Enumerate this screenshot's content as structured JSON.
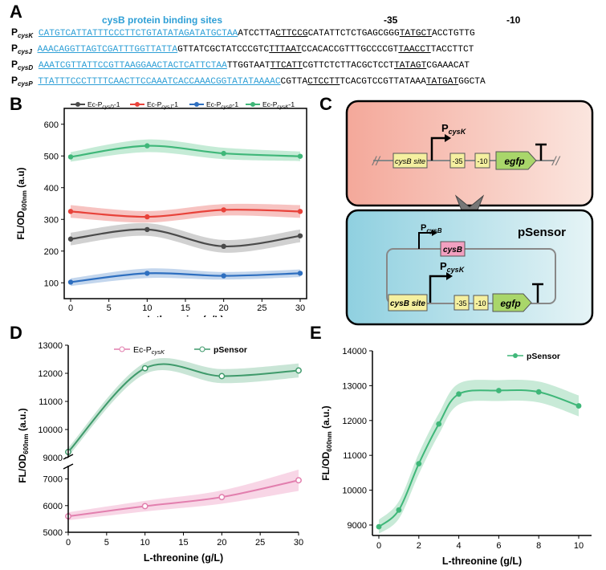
{
  "panel_a": {
    "letter": "A",
    "site_header": "cysB protein binding sites",
    "minus35": "-35",
    "minus10": "-10",
    "rows": [
      {
        "p": "P",
        "sub": "cysK",
        "site": "CATGTCATTATTTCCCTTCTGTATATAGATATGCTAA",
        "a": "ATCCTTA",
        "b": "CTTCCG",
        "c": "CATATTCTCTGAGCGGG",
        "d": "TATGCT",
        "e": "ACCTGTTG"
      },
      {
        "p": "P",
        "sub": "cysJ",
        "site": "AAACAGGTTAGTCGATTTGGTTATTA",
        "a": "GTTATCGCTATCCCGTC",
        "b": "TTTAAT",
        "c": "CCACACCGTTTGCCCCGT",
        "d": "TAACCT",
        "e": "TACCTTCT"
      },
      {
        "p": "P",
        "sub": "cysD",
        "site": "AAATCGTTATTCCGTTAAGGAACTACTCATTCTAA",
        "a": "TTGGTAAT",
        "b": "TTCATT",
        "c": "CGTTCTCTTACGCTCCT",
        "d": "TATAGT",
        "e": "CGAAACAT"
      },
      {
        "p": "P",
        "sub": "cysP",
        "site": "TTATTTCCCTTTTCAACTTCCAAATCACCAAACGGTATATAAAAC",
        "a": "CGTTA",
        "b": "CTCCTT",
        "c": "TCACGTCCGTTATAAA",
        "d": "TATGAT",
        "e": "GGCTA"
      }
    ]
  },
  "panel_b": {
    "letter": "B"
  },
  "panel_c": {
    "letter": "C",
    "top_promoter": "P",
    "top_promoter_sub": "cysK",
    "cysb_site": "cysB site",
    "m35": "-35",
    "m10": "-10",
    "gene": "egfp",
    "bottom_title": "pSensor",
    "bottom_promoter1": "P",
    "bottom_promoter1_sub": "cysB",
    "cysb_gene": "cysB",
    "bottom_promoter2": "P",
    "bottom_promoter2_sub": "cysK",
    "colors": {
      "top_bg": "#f3b9ad",
      "bottom_bg": "#9fd5e2",
      "site_fill": "#f5f0a0",
      "gene_fill": "#a9d66a",
      "cysb_fill": "#f2a0c0"
    }
  },
  "panel_d": {
    "letter": "D"
  },
  "panel_e": {
    "letter": "E"
  },
  "chart_data": [
    {
      "type": "line",
      "panel": "B",
      "xlabel": "L-threonine (g/L)",
      "ylabel": "FL/OD600nm (a.u)",
      "xlim": [
        0,
        30
      ],
      "ylim": [
        50,
        650
      ],
      "xticks": [
        0,
        5,
        10,
        15,
        20,
        25,
        30
      ],
      "yticks": [
        100,
        200,
        300,
        400,
        500,
        600
      ],
      "x": [
        0,
        10,
        20,
        30
      ],
      "series": [
        {
          "name": "Ec-P",
          "sub": "cysD",
          "suffix": "-1",
          "color": "#4a4a4a",
          "band": "#bdbdbd",
          "values": [
            238,
            268,
            215,
            248
          ],
          "err": [
            20,
            20,
            20,
            20
          ]
        },
        {
          "name": "Ec-P",
          "sub": "cysJ",
          "suffix": "-1",
          "color": "#e8423a",
          "band": "#f4aaa6",
          "values": [
            325,
            308,
            330,
            325
          ],
          "err": [
            20,
            18,
            18,
            20
          ]
        },
        {
          "name": "Ec-P",
          "sub": "cysP",
          "suffix": "-1",
          "color": "#2e6fc0",
          "band": "#a9c4e6",
          "values": [
            102,
            130,
            122,
            130
          ],
          "err": [
            12,
            15,
            12,
            12
          ]
        },
        {
          "name": "Ec-P",
          "sub": "cysK",
          "suffix": "-1",
          "color": "#3fb779",
          "band": "#ace3c4",
          "values": [
            497,
            532,
            508,
            499
          ],
          "err": [
            15,
            20,
            18,
            15
          ]
        }
      ],
      "legend": "top"
    },
    {
      "type": "line",
      "panel": "D",
      "xlabel": "L-threonine (g/L)",
      "ylabel": "FL/OD600nm (a.u.)",
      "xlim": [
        0,
        30
      ],
      "broken_axis": true,
      "ylim_top": [
        9000,
        13000
      ],
      "ylim_bottom": [
        5000,
        7500
      ],
      "yticks_top": [
        9000,
        10000,
        11000,
        12000,
        13000
      ],
      "yticks_bottom": [
        5000,
        6000,
        7000
      ],
      "xticks": [
        0,
        5,
        10,
        15,
        20,
        25,
        30
      ],
      "x": [
        0,
        10,
        20,
        30
      ],
      "series": [
        {
          "name": "Ec-P",
          "sub": "cysK",
          "color": "#e27fae",
          "band": "#f6c8dd",
          "values": [
            5600,
            5980,
            6320,
            6950
          ],
          "err": [
            150,
            200,
            250,
            400
          ]
        },
        {
          "name": "pSensor",
          "color": "#3f9a6b",
          "band": "#b7dcc8",
          "values": [
            9200,
            12180,
            11900,
            12100
          ],
          "err": [
            150,
            200,
            250,
            250
          ]
        }
      ],
      "legend": "top"
    },
    {
      "type": "line",
      "panel": "E",
      "xlabel": "L-threonine (g/L)",
      "ylabel": "FL/OD600nm (a.u.)",
      "xlim": [
        0,
        10
      ],
      "ylim": [
        8700,
        14000
      ],
      "xticks": [
        0,
        2,
        4,
        6,
        8,
        10
      ],
      "yticks": [
        9000,
        10000,
        11000,
        12000,
        13000,
        14000
      ],
      "x": [
        0,
        1,
        2,
        3,
        4,
        6,
        8,
        10
      ],
      "series": [
        {
          "name": "pSensor",
          "color": "#3fb779",
          "band": "#b5e3c9",
          "values": [
            8950,
            9430,
            10760,
            11900,
            12760,
            12860,
            12820,
            12420
          ],
          "err": [
            200,
            250,
            300,
            300,
            300,
            300,
            300,
            300
          ]
        }
      ],
      "legend": "top-right"
    }
  ]
}
